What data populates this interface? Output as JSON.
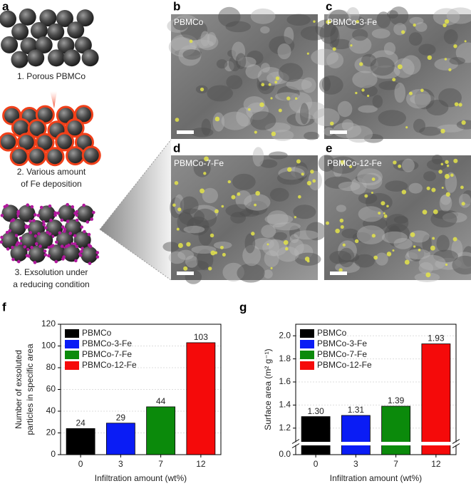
{
  "panels": {
    "letters": [
      "a",
      "b",
      "c",
      "d",
      "e",
      "f",
      "g"
    ],
    "schematic": [
      "1. Porous PBMCo",
      "2. Various amount",
      "of Fe deposition",
      "3. Exsolution under",
      "a reducing condition"
    ],
    "sem_labels": [
      "PBMCo",
      "PBMCo-3-Fe",
      "PBMCo-7-Fe",
      "PBMCo-12-Fe"
    ]
  },
  "chart_data": [
    {
      "type": "bar",
      "ylabel": [
        "Number of exsoluted",
        "particles in specific area"
      ],
      "xlabel": "Infiltration amount (wt%)",
      "categories": [
        "0",
        "3",
        "7",
        "12"
      ],
      "values": [
        24,
        29,
        44,
        103
      ],
      "colors": [
        "#000000",
        "#0a1cf5",
        "#0b8a0b",
        "#f50a0a"
      ],
      "legend": [
        "PBMCo",
        "PBMCo-3-Fe",
        "PBMCo-7-Fe",
        "PBMCo-12-Fe"
      ],
      "ylim": [
        0,
        120
      ],
      "yticks": [
        0,
        20,
        40,
        60,
        80,
        100,
        120
      ],
      "grid": true
    },
    {
      "type": "bar",
      "ylabel": "Surface area (m² g⁻¹)",
      "xlabel": "Infiltration amount (wt%)",
      "categories": [
        "0",
        "3",
        "7",
        "12"
      ],
      "values": [
        1.3,
        1.31,
        1.39,
        1.93
      ],
      "value_labels": [
        "1.30",
        "1.31",
        "1.39",
        "1.93"
      ],
      "colors": [
        "#000000",
        "#0a1cf5",
        "#0b8a0b",
        "#f50a0a"
      ],
      "legend": [
        "PBMCo",
        "PBMCo-3-Fe",
        "PBMCo-7-Fe",
        "PBMCo-12-Fe"
      ],
      "ylim": [
        0,
        2.1
      ],
      "axis_break": [
        0.06,
        1.1
      ],
      "yticks": [
        {
          "value": 0,
          "label": "0.0"
        },
        1.2,
        1.4,
        1.6,
        1.8,
        {
          "value": 2,
          "label": "2.0"
        }
      ],
      "grid": true
    }
  ]
}
